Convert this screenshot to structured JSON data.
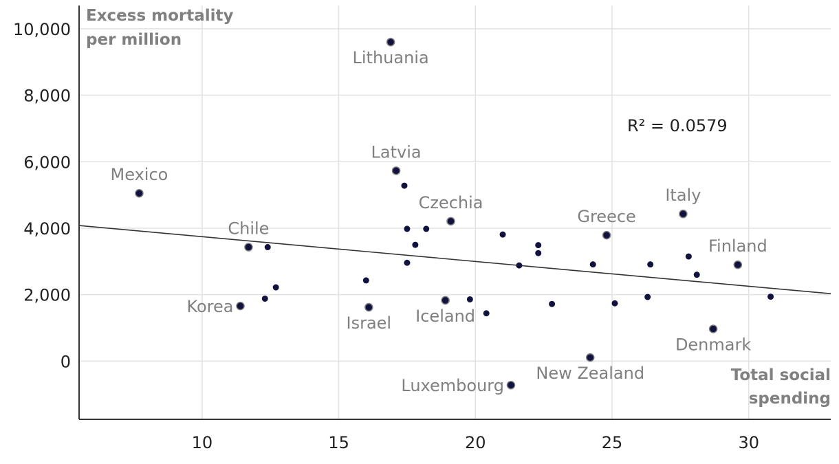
{
  "chart_data": {
    "type": "scatter",
    "title": "",
    "ylabel": [
      "Excess mortality",
      "per million"
    ],
    "xlabel": [
      "Total social",
      "spending"
    ],
    "annotation": "R² = 0.0579",
    "xlim": [
      5.5,
      33
    ],
    "ylim": [
      -1750,
      10700
    ],
    "xticks": [
      10,
      15,
      20,
      25,
      30
    ],
    "xtick_labels": [
      "10",
      "15",
      "20",
      "25",
      "30"
    ],
    "yticks": [
      0,
      2000,
      4000,
      6000,
      8000,
      10000
    ],
    "ytick_labels": [
      "0",
      "2,000",
      "4,000",
      "6,000",
      "8,000",
      "10,000"
    ],
    "trendline": {
      "x": [
        5.5,
        33
      ],
      "y": [
        4080,
        2030
      ]
    },
    "grid": true,
    "colors": {
      "point": "#12123f",
      "point_labeled_outline": "#7f7f7f",
      "trendline": "#333333",
      "grid": "#e3e3e3",
      "axis": "#333333",
      "label": "#808080"
    },
    "points": [
      {
        "x": 7.7,
        "y": 5050,
        "label": "Mexico",
        "label_pos": "above"
      },
      {
        "x": 11.7,
        "y": 3430,
        "label": "Chile",
        "label_pos": "above"
      },
      {
        "x": 11.4,
        "y": 1660,
        "label": "Korea",
        "label_pos": "left"
      },
      {
        "x": 12.4,
        "y": 3430,
        "label": null
      },
      {
        "x": 12.3,
        "y": 1880,
        "label": null
      },
      {
        "x": 12.7,
        "y": 2220,
        "label": null
      },
      {
        "x": 16.0,
        "y": 2430,
        "label": null
      },
      {
        "x": 16.1,
        "y": 1620,
        "label": "Israel",
        "label_pos": "below"
      },
      {
        "x": 16.9,
        "y": 9600,
        "label": "Lithuania",
        "label_pos": "below"
      },
      {
        "x": 17.1,
        "y": 5730,
        "label": "Latvia",
        "label_pos": "above"
      },
      {
        "x": 17.4,
        "y": 5280,
        "label": null
      },
      {
        "x": 17.5,
        "y": 3980,
        "label": null
      },
      {
        "x": 17.5,
        "y": 2960,
        "label": null
      },
      {
        "x": 17.8,
        "y": 3500,
        "label": null
      },
      {
        "x": 18.2,
        "y": 3980,
        "label": null
      },
      {
        "x": 19.1,
        "y": 4210,
        "label": "Czechia",
        "label_pos": "above"
      },
      {
        "x": 18.9,
        "y": 1830,
        "label": "Iceland",
        "label_pos": "below"
      },
      {
        "x": 19.8,
        "y": 1860,
        "label": null
      },
      {
        "x": 20.4,
        "y": 1440,
        "label": null
      },
      {
        "x": 21.0,
        "y": 3810,
        "label": null
      },
      {
        "x": 21.3,
        "y": -720,
        "label": "Luxembourg",
        "label_pos": "left"
      },
      {
        "x": 21.6,
        "y": 2880,
        "label": null
      },
      {
        "x": 22.3,
        "y": 3490,
        "label": null
      },
      {
        "x": 22.3,
        "y": 3250,
        "label": null
      },
      {
        "x": 22.8,
        "y": 1720,
        "label": null
      },
      {
        "x": 24.2,
        "y": 110,
        "label": "New Zealand",
        "label_pos": "below"
      },
      {
        "x": 24.3,
        "y": 2910,
        "label": null
      },
      {
        "x": 24.8,
        "y": 3790,
        "label": "Greece",
        "label_pos": "above"
      },
      {
        "x": 25.1,
        "y": 1740,
        "label": null
      },
      {
        "x": 26.3,
        "y": 1930,
        "label": null
      },
      {
        "x": 26.4,
        "y": 2910,
        "label": null
      },
      {
        "x": 27.6,
        "y": 4430,
        "label": "Italy",
        "label_pos": "above"
      },
      {
        "x": 27.8,
        "y": 3150,
        "label": null
      },
      {
        "x": 28.1,
        "y": 2600,
        "label": null
      },
      {
        "x": 28.7,
        "y": 970,
        "label": "Denmark",
        "label_pos": "below"
      },
      {
        "x": 29.6,
        "y": 2900,
        "label": "Finland",
        "label_pos": "above"
      },
      {
        "x": 30.8,
        "y": 1940,
        "label": null
      }
    ]
  }
}
